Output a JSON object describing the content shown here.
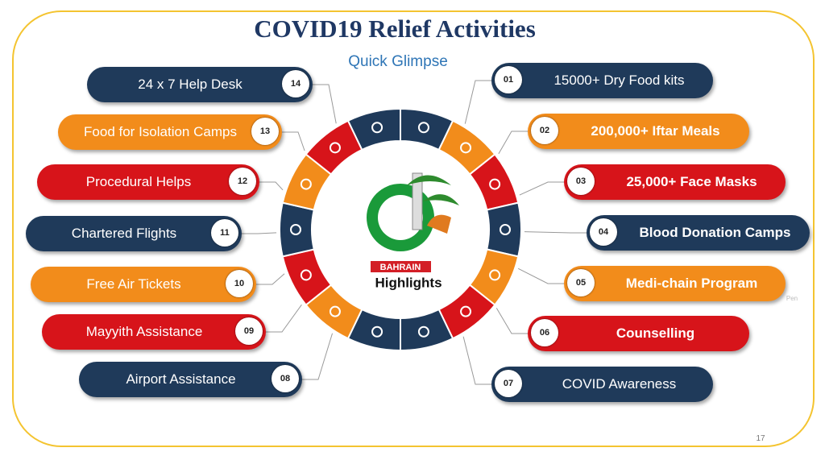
{
  "header": {
    "title": "COVID19 Relief Activities",
    "subtitle": "Quick Glimpse"
  },
  "items": [
    {
      "number": "01",
      "label": "15000+ Dry Food kits"
    },
    {
      "number": "02",
      "label": "200,000+ Iftar Meals"
    },
    {
      "number": "03",
      "label": "25,000+ Face Masks"
    },
    {
      "number": "04",
      "label": "Blood Donation Camps"
    },
    {
      "number": "05",
      "label": "Medi-chain Program"
    },
    {
      "number": "06",
      "label": "Counselling"
    },
    {
      "number": "07",
      "label": "COVID Awareness"
    },
    {
      "number": "08",
      "label": "Airport Assistance"
    },
    {
      "number": "09",
      "label": "Mayyith Assistance"
    },
    {
      "number": "10",
      "label": "Free Air Tickets"
    },
    {
      "number": "11",
      "label": "Chartered Flights"
    },
    {
      "number": "12",
      "label": "Procedural Helps"
    },
    {
      "number": "13",
      "label": "Food for Isolation Camps"
    },
    {
      "number": "14",
      "label": "24 x 7 Help Desk"
    }
  ],
  "center": {
    "badge": "BAHRAIN",
    "label": "Highlights"
  },
  "watermark": "Pen",
  "page_number": "17"
}
